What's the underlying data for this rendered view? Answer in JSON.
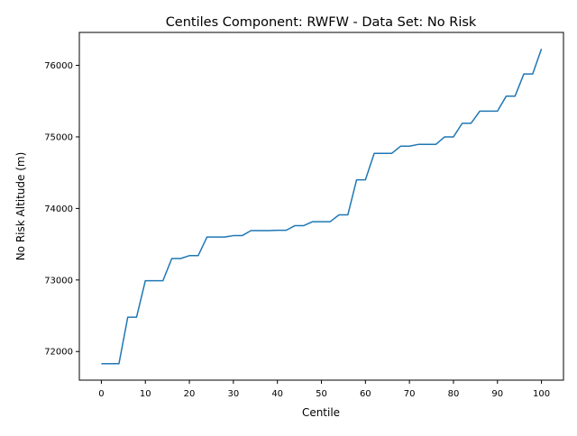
{
  "colors": {
    "line": "#1f77b4",
    "axes": "#000000",
    "background": "#ffffff"
  },
  "chart_data": {
    "type": "line",
    "title": "Centiles Component: RWFW - Data Set: No Risk",
    "xlabel": "Centile",
    "ylabel": "No Risk Altitude (m)",
    "xlim": [
      -5,
      105
    ],
    "ylim": [
      71600,
      76460
    ],
    "xticks": [
      0,
      10,
      20,
      30,
      40,
      50,
      60,
      70,
      80,
      90,
      100
    ],
    "yticks": [
      72000,
      73000,
      74000,
      75000,
      76000
    ],
    "grid": false,
    "series": [
      {
        "x": [
          0,
          2,
          4,
          6,
          8,
          10,
          12,
          14,
          16,
          18,
          20,
          22,
          24,
          26,
          28,
          30,
          32,
          34,
          36,
          38,
          40,
          42,
          44,
          46,
          48,
          50,
          52,
          54,
          56,
          58,
          60,
          62,
          64,
          66,
          68,
          70,
          72,
          74,
          76,
          78,
          80,
          82,
          84,
          86,
          88,
          90,
          92,
          94,
          96,
          98,
          100
        ],
        "values": [
          71830,
          71830,
          71830,
          72480,
          72480,
          72990,
          72990,
          72990,
          73300,
          73300,
          73340,
          73340,
          73600,
          73600,
          73600,
          73620,
          73620,
          73690,
          73690,
          73690,
          73695,
          73695,
          73760,
          73760,
          73815,
          73815,
          73815,
          73910,
          73910,
          74400,
          74400,
          74770,
          74770,
          74770,
          74870,
          74870,
          74895,
          74895,
          74895,
          75000,
          75000,
          75190,
          75190,
          75360,
          75360,
          75360,
          75570,
          75570,
          75880,
          75880,
          76230
        ]
      }
    ]
  }
}
